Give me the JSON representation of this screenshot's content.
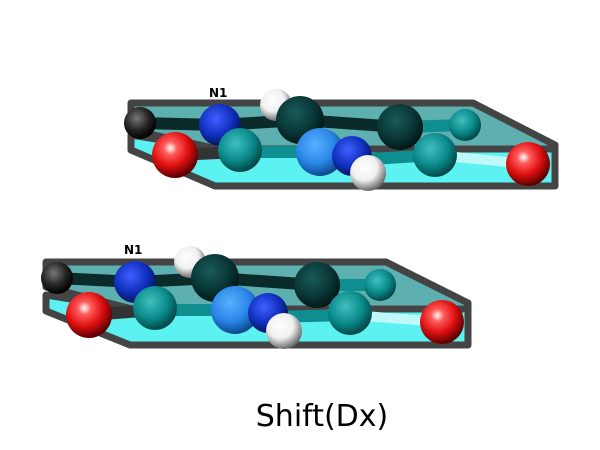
{
  "diagram": {
    "caption": "Shift(Dx)",
    "dimers": [
      {
        "atom_label": "N1"
      },
      {
        "atom_label": "N1"
      }
    ],
    "colors": {
      "background": "#ffffff",
      "upper_plane_fill": "#2f9a98",
      "lower_plane_fill": "#3ff0f0",
      "plane_edge": "#333333",
      "carbon": "#0e8e8e",
      "carbon_dark": "#083c3c",
      "nitrogen": "#1030c8",
      "nitrogen_light": "#2a86e8",
      "oxygen": "#ee1111",
      "hydrogen": "#f2f2f2"
    }
  }
}
